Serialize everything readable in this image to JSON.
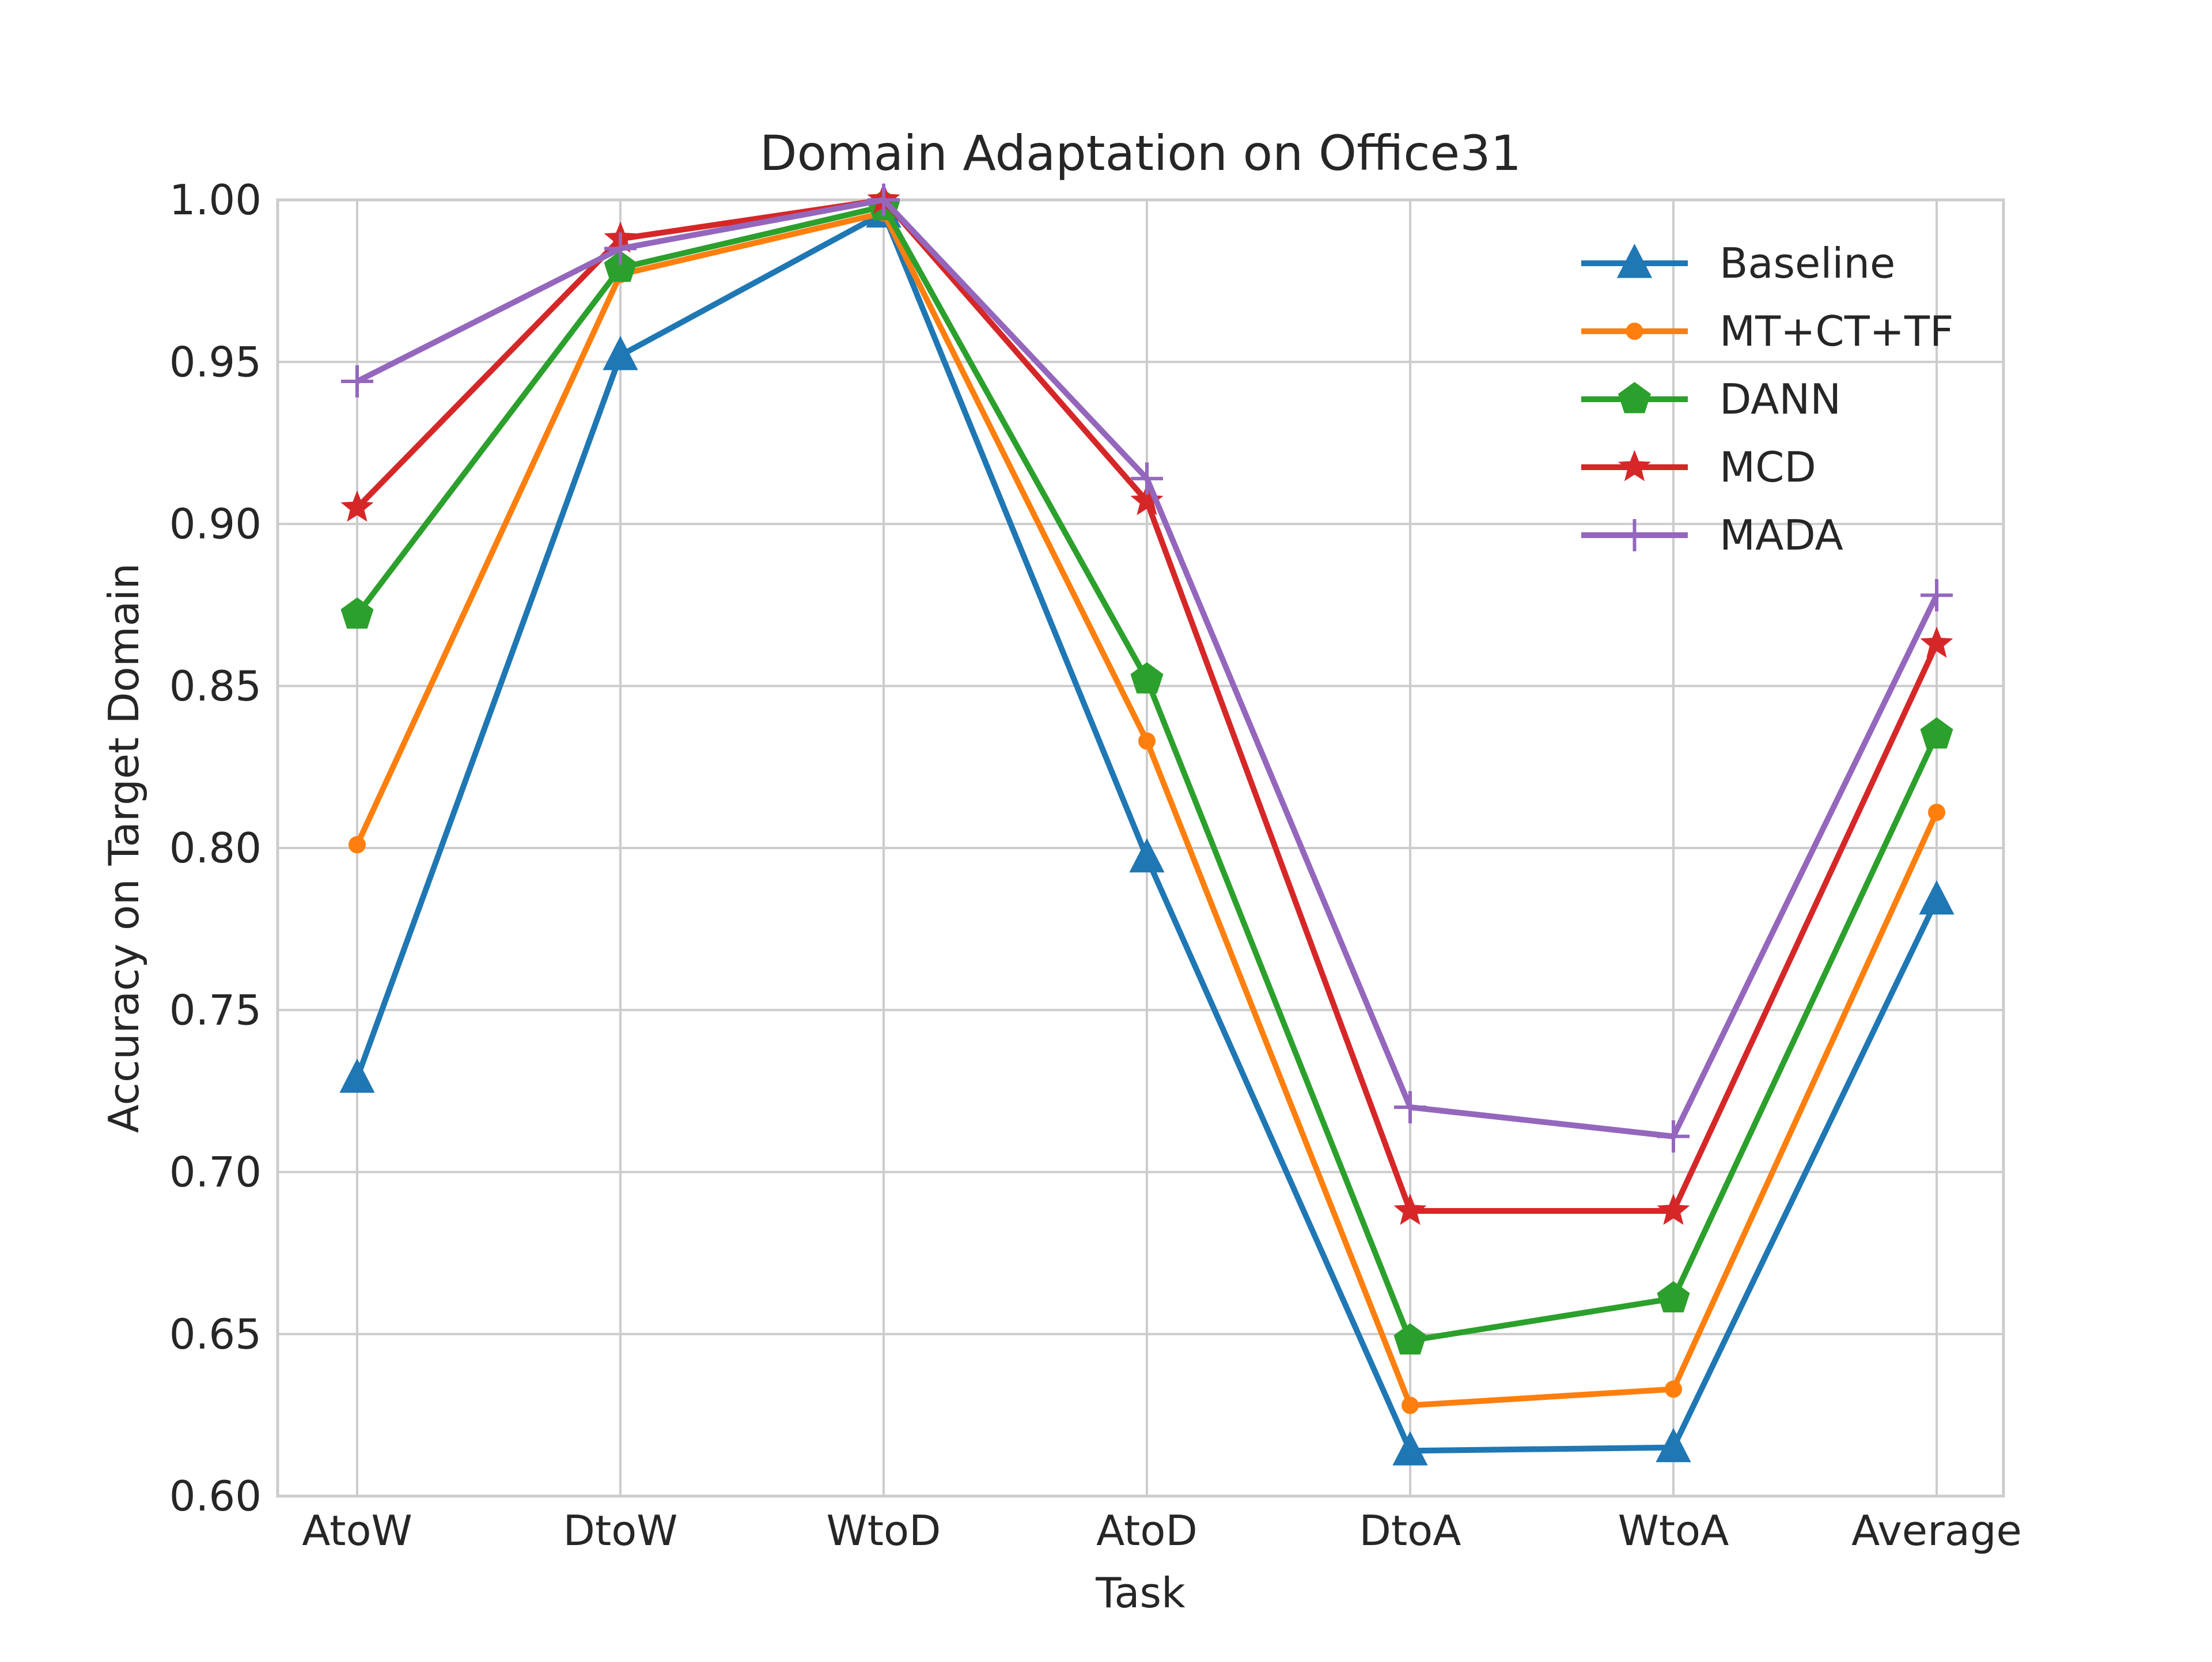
{
  "chart_data": {
    "type": "line",
    "title": "Domain Adaptation on Office31",
    "xlabel": "Task",
    "ylabel": "Accuracy on Target Domain",
    "categories": [
      "AtoW",
      "DtoW",
      "WtoD",
      "AtoD",
      "DtoA",
      "WtoA",
      "Average"
    ],
    "ylim": [
      0.6,
      1.0
    ],
    "yticks": [
      "0.60",
      "0.65",
      "0.70",
      "0.75",
      "0.80",
      "0.85",
      "0.90",
      "0.95",
      "1.00"
    ],
    "grid": true,
    "legend_position": "top-right",
    "series": [
      {
        "name": "Baseline",
        "color": "#1f77b4",
        "marker": "triangle",
        "values": [
          0.729,
          0.952,
          0.996,
          0.797,
          0.614,
          0.615,
          0.784
        ]
      },
      {
        "name": "MT+CT+TF",
        "color": "#ff7f0e",
        "marker": "circle",
        "values": [
          0.801,
          0.977,
          0.996,
          0.833,
          0.628,
          0.633,
          0.811
        ]
      },
      {
        "name": "DANN",
        "color": "#2ca02c",
        "marker": "pentagon",
        "values": [
          0.872,
          0.979,
          0.998,
          0.852,
          0.648,
          0.661,
          0.835
        ]
      },
      {
        "name": "MCD",
        "color": "#d62728",
        "marker": "star",
        "values": [
          0.905,
          0.988,
          1.0,
          0.907,
          0.688,
          0.688,
          0.863
        ]
      },
      {
        "name": "MADA",
        "color": "#9467bd",
        "marker": "plus",
        "values": [
          0.944,
          0.985,
          1.0,
          0.914,
          0.72,
          0.711,
          0.878
        ]
      }
    ]
  }
}
